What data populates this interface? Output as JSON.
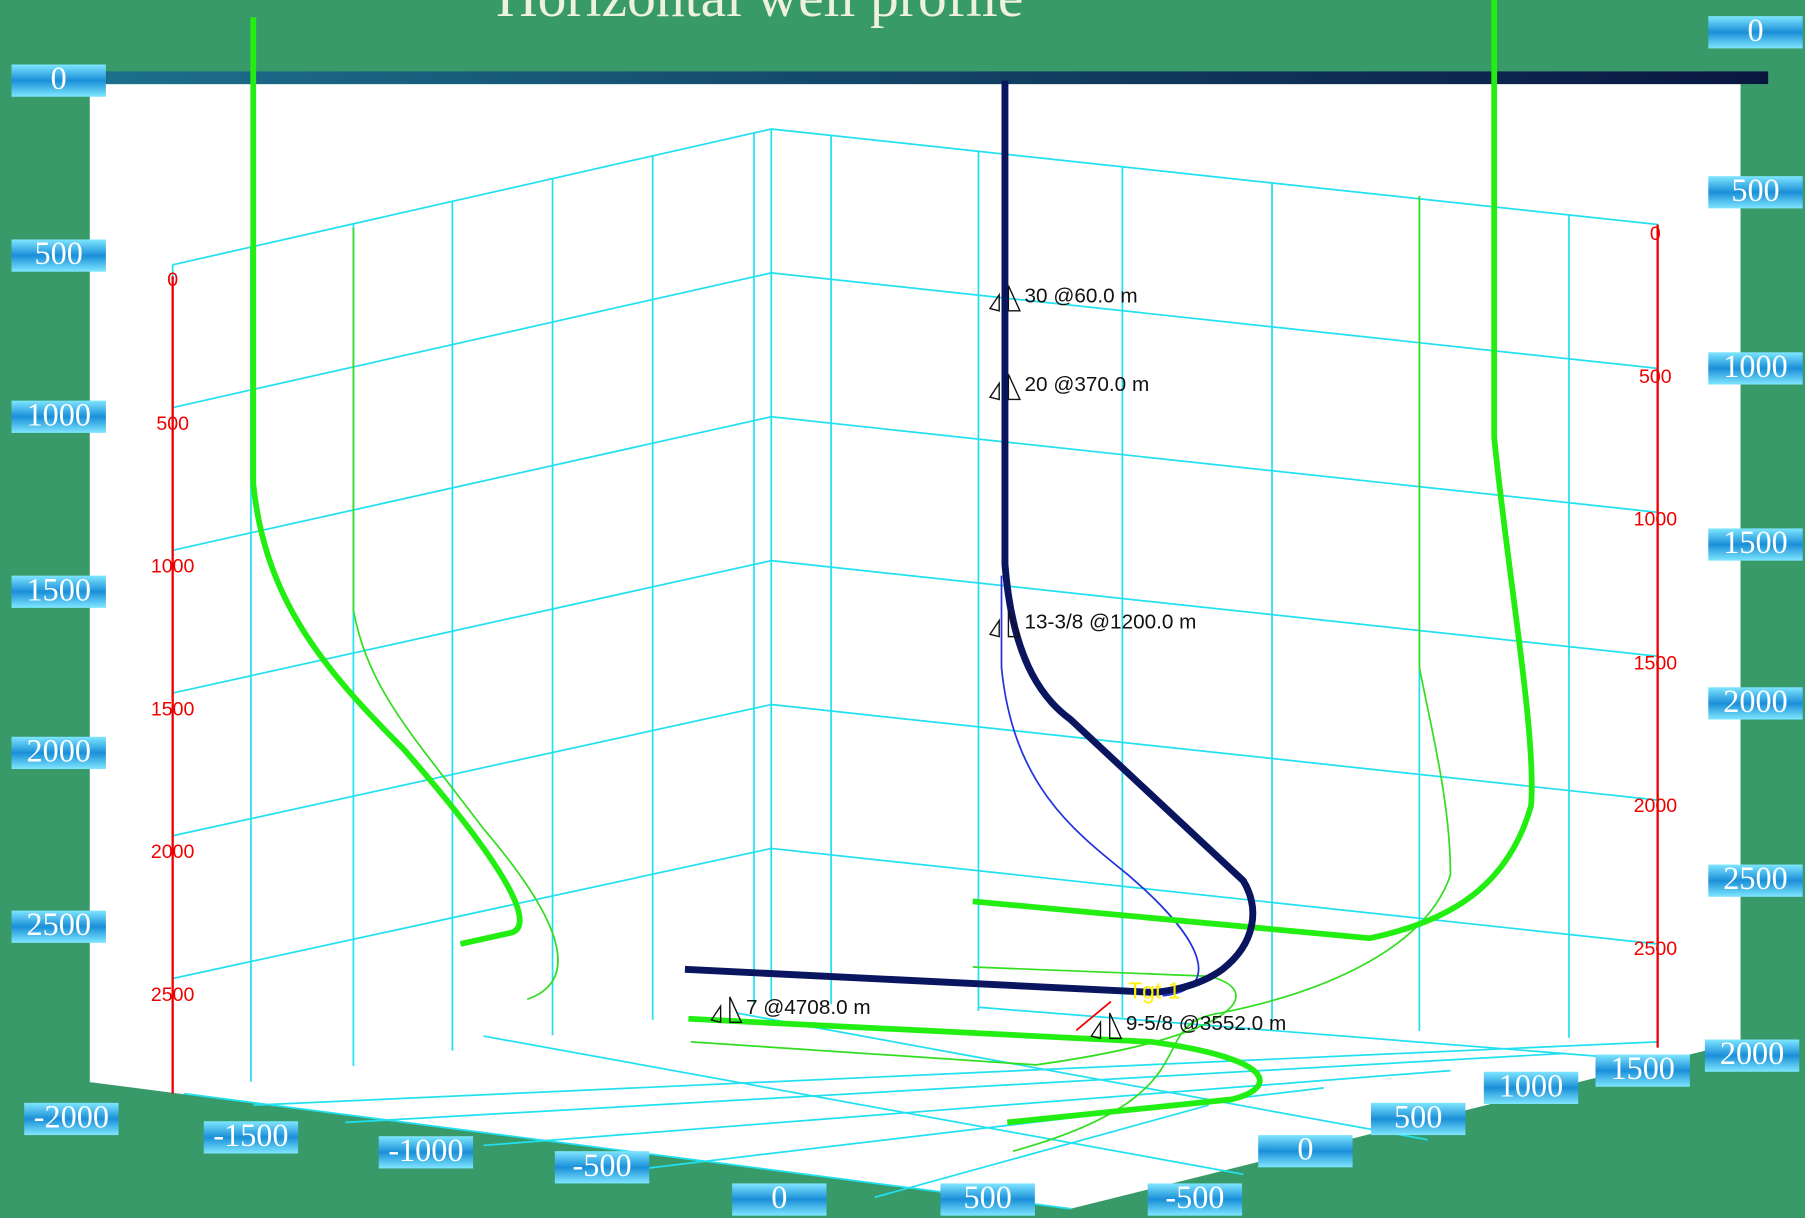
{
  "title": "Horizontal well profile",
  "left_axis_labels": [
    "0",
    "500",
    "1000",
    "1500",
    "2000",
    "2500"
  ],
  "right_axis_labels": [
    "0",
    "500",
    "1000",
    "1500",
    "2000",
    "2500"
  ],
  "bottom_left_labels": [
    "-2000",
    "-1500",
    "-1000",
    "-500",
    "0",
    "500"
  ],
  "bottom_right_labels": [
    "-500",
    "0",
    "500",
    "1000",
    "1500",
    "2000"
  ],
  "inner_left_depth_labels": [
    "0",
    "500",
    "1000",
    "1500",
    "2000",
    "2500"
  ],
  "inner_right_depth_labels": [
    "0",
    "500",
    "1000",
    "1500",
    "2000",
    "2500"
  ],
  "annotations": [
    "30 @60.0 m",
    "20 @370.0 m",
    "13-3/8 @1200.0 m",
    "9-5/8 @3552.0 m",
    "7 @4708.0 m",
    "Tgt 1"
  ]
}
